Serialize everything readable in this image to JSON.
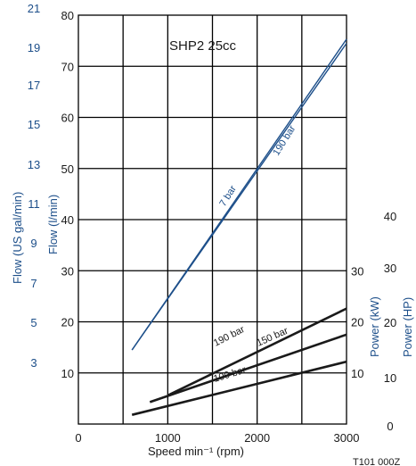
{
  "chart_data": {
    "type": "line",
    "title": "SHP2  25cc",
    "xlabel": "Speed min⁻¹ (rpm)",
    "xlim": [
      0,
      3000
    ],
    "x_ticks": [
      "0",
      "1000",
      "2000",
      "3000"
    ],
    "ylabel_left_inner": "Flow (l/min)",
    "ylim_left_inner": [
      0,
      80
    ],
    "y_ticks_left_inner": [
      "10",
      "20",
      "30",
      "40",
      "50",
      "60",
      "70",
      "80"
    ],
    "ylabel_left_outer": "Flow (US gal/min)",
    "y_ticks_left_outer": [
      "3",
      "5",
      "7",
      "9",
      "11",
      "13",
      "15",
      "17",
      "19",
      "21"
    ],
    "ylabel_right_kw": "Power (kW)",
    "y_ticks_right_kw": [
      "10",
      "20",
      "30"
    ],
    "ylabel_right_hp": "Power (HP)",
    "y_ticks_right_hp": [
      "0",
      "10",
      "20",
      "30",
      "40"
    ],
    "grid": true,
    "flow_series": [
      {
        "name": "7 bar",
        "x": [
          600,
          3000
        ],
        "y": [
          14.5,
          74.5
        ]
      },
      {
        "name": "190 bar",
        "x": [
          600,
          3000
        ],
        "y": [
          14.5,
          75.3
        ]
      }
    ],
    "power_series_scale": "Power (kW), plotted on the 0–40 kW scale spanning the lower half of the grid",
    "power_series": [
      {
        "name": "190 bar",
        "x": [
          1000,
          3000
        ],
        "y": [
          5.6,
          22.6
        ]
      },
      {
        "name": "150 bar",
        "x": [
          800,
          3000
        ],
        "y": [
          4.3,
          17.5
        ]
      },
      {
        "name": "100 bar",
        "x": [
          600,
          3000
        ],
        "y": [
          1.8,
          12.2
        ]
      }
    ],
    "footer_text": "T101 000Z"
  },
  "colors": {
    "flow": "#1d4f8a",
    "power": "#1a1a1a",
    "grid": "#000000",
    "right_ticks": "#1a1a1a"
  }
}
